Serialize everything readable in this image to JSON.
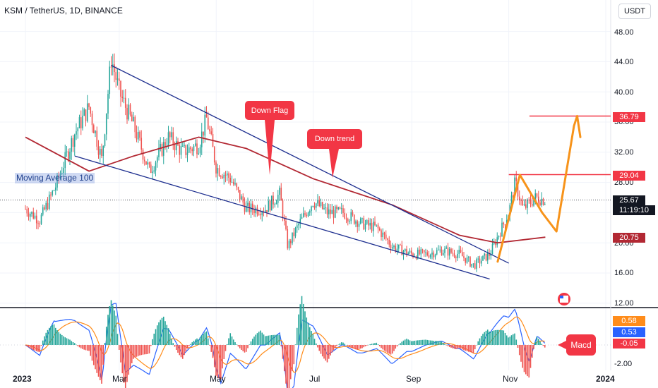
{
  "header": {
    "symbol": "KSM / TetherUS, 1D, BINANCE",
    "currency": "USDT"
  },
  "price_axis": {
    "ticks": [
      "48.00",
      "44.00",
      "40.00",
      "36.00",
      "32.00",
      "28.00",
      "24.00",
      "20.00",
      "16.00",
      "12.00"
    ],
    "tags": [
      {
        "label": "36.79",
        "color": "#f23645"
      },
      {
        "label": "29.04",
        "color": "#f23645"
      },
      {
        "label": "25.67",
        "color": "#131722"
      },
      {
        "label": "20.75",
        "color": "#b22833"
      }
    ],
    "countdown": "11:19:10"
  },
  "indicator_axis": {
    "ticks": [
      "-2.00"
    ],
    "tags": [
      {
        "label": "0.58",
        "color": "#ff8c1a"
      },
      {
        "label": "0.53",
        "color": "#2962ff"
      },
      {
        "label": "-0.05",
        "color": "#f23645"
      }
    ]
  },
  "time_axis": {
    "ticks": [
      {
        "label": "2023",
        "bold": true
      },
      {
        "label": "Mar",
        "bold": false
      },
      {
        "label": "May",
        "bold": false
      },
      {
        "label": "Jul",
        "bold": false
      },
      {
        "label": "Sep",
        "bold": false
      },
      {
        "label": "Nov",
        "bold": false
      },
      {
        "label": "2024",
        "bold": true
      }
    ]
  },
  "annotations": {
    "moving_average": "Moving Average 100",
    "down_flag": "Down Flag",
    "down_trend": "Down trend",
    "macd": "Macd"
  },
  "colors": {
    "up": "#26a69a",
    "down": "#ef5350",
    "ma": "#b22833",
    "channel": "#1e2f8f",
    "projection": "#f7931a",
    "level": "#f23645"
  },
  "chart_data": {
    "type": "candlestick",
    "symbol": "KSM / TetherUS",
    "interval": "1D",
    "exchange": "BINANCE",
    "close_path": [
      [
        "2023-01-01",
        24.5
      ],
      [
        "2023-01-10",
        23.0
      ],
      [
        "2023-01-20",
        27.5
      ],
      [
        "2023-02-01",
        34.5
      ],
      [
        "2023-02-10",
        38.0
      ],
      [
        "2023-02-18",
        31.0
      ],
      [
        "2023-02-24",
        44.5
      ],
      [
        "2023-03-01",
        40.0
      ],
      [
        "2023-03-10",
        35.5
      ],
      [
        "2023-03-20",
        29.5
      ],
      [
        "2023-04-01",
        34.0
      ],
      [
        "2023-04-10",
        32.0
      ],
      [
        "2023-04-20",
        33.0
      ],
      [
        "2023-04-25",
        36.5
      ],
      [
        "2023-05-01",
        30.0
      ],
      [
        "2023-05-10",
        28.5
      ],
      [
        "2023-05-20",
        24.5
      ],
      [
        "2023-06-01",
        24.5
      ],
      [
        "2023-06-10",
        26.5
      ],
      [
        "2023-06-15",
        19.5
      ],
      [
        "2023-06-22",
        22.5
      ],
      [
        "2023-07-01",
        25.5
      ],
      [
        "2023-07-10",
        24.0
      ],
      [
        "2023-07-20",
        24.0
      ],
      [
        "2023-08-01",
        22.5
      ],
      [
        "2023-08-10",
        22.0
      ],
      [
        "2023-08-20",
        19.5
      ],
      [
        "2023-09-01",
        18.5
      ],
      [
        "2023-09-10",
        18.5
      ],
      [
        "2023-09-20",
        19.0
      ],
      [
        "2023-10-01",
        18.5
      ],
      [
        "2023-10-10",
        17.0
      ],
      [
        "2023-10-20",
        18.5
      ],
      [
        "2023-11-01",
        24.0
      ],
      [
        "2023-11-05",
        28.0
      ],
      [
        "2023-11-10",
        24.5
      ],
      [
        "2023-11-18",
        26.0
      ],
      [
        "2023-11-24",
        25.67
      ]
    ],
    "moving_average_100": [
      [
        "2023-01-01",
        34.0
      ],
      [
        "2023-02-10",
        29.5
      ],
      [
        "2023-03-10",
        31.5
      ],
      [
        "2023-04-20",
        34.0
      ],
      [
        "2023-05-20",
        32.5
      ],
      [
        "2023-07-01",
        28.5
      ],
      [
        "2023-08-20",
        25.0
      ],
      [
        "2023-10-01",
        21.0
      ],
      [
        "2023-10-25",
        20.0
      ],
      [
        "2023-11-24",
        20.75
      ]
    ],
    "channel_upper": [
      [
        "2023-02-24",
        43.5
      ],
      [
        "2023-11-01",
        17.3
      ]
    ],
    "channel_lower": [
      [
        "2023-02-01",
        31.5
      ],
      [
        "2023-10-20",
        15.2
      ]
    ],
    "projection_path": [
      [
        "2023-10-25",
        17.5
      ],
      [
        "2023-11-08",
        29.0
      ],
      [
        "2023-11-22",
        24.0
      ],
      [
        "2023-12-01",
        21.5
      ],
      [
        "2023-12-12",
        35.5
      ],
      [
        "2023-12-14",
        36.8
      ],
      [
        "2023-12-16",
        34.0
      ]
    ],
    "horizontal_levels": [
      36.79,
      29.04
    ],
    "last_price": 25.67,
    "macd": {
      "macd": 0.53,
      "signal": 0.58,
      "histogram": -0.05
    },
    "ylim": [
      12,
      50
    ],
    "annotations": [
      "Moving Average 100",
      "Down Flag",
      "Down trend",
      "Macd"
    ]
  }
}
